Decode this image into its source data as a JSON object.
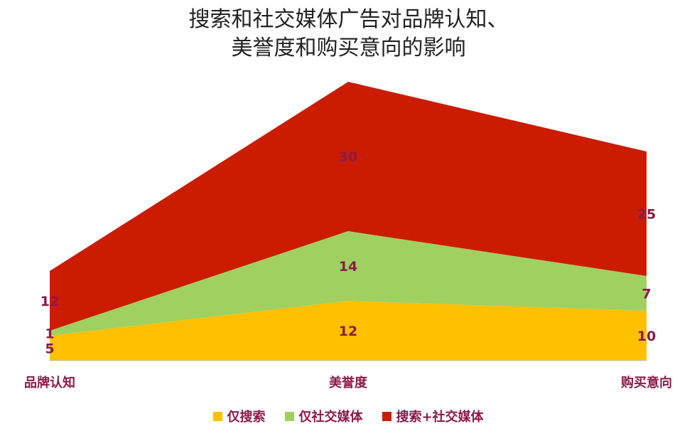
{
  "title_lines": [
    "搜索和社交媒体广告对品牌认知、",
    "美誉度和购买意向的影响"
  ],
  "chart_data": {
    "type": "area",
    "stacked": true,
    "categories": [
      "品牌认知",
      "美誉度",
      "购买意向"
    ],
    "series": [
      {
        "name": "仅搜索",
        "values": [
          5,
          12,
          10
        ],
        "color": "#FFC000",
        "labels": [
          "5",
          "12",
          "10"
        ]
      },
      {
        "name": "仅社交媒体",
        "values": [
          1,
          14,
          7
        ],
        "color": "#A0D060",
        "labels": [
          "1",
          "14",
          "7"
        ]
      },
      {
        "name": "搜索+社交媒体",
        "values": [
          12,
          30,
          25
        ],
        "color": "#CC1C00",
        "labels": [
          "12",
          "30",
          "25"
        ]
      }
    ],
    "ylim": [
      0,
      56
    ],
    "grid": false,
    "legend": "bottom"
  }
}
